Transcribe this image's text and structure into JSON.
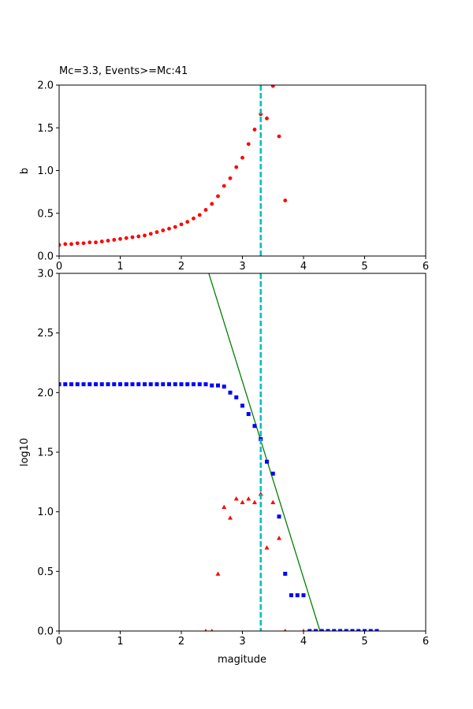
{
  "chart_data": [
    {
      "type": "scatter",
      "title": "Mc=3.3, Events>=Mc:41",
      "xlabel": "",
      "ylabel": "b",
      "xlim": [
        0,
        6
      ],
      "ylim": [
        0,
        2.0
      ],
      "x_ticks": [
        "0",
        "1",
        "2",
        "3",
        "4",
        "5",
        "6"
      ],
      "y_ticks": [
        "0.0",
        "0.5",
        "1.0",
        "1.5",
        "2.0"
      ],
      "grid": false,
      "mc_line": {
        "x": 3.3,
        "color": "#00bfbf",
        "style": "dashed"
      },
      "series": [
        {
          "color": "#ff0000",
          "marker": "circle",
          "x": [
            0.0,
            0.1,
            0.2,
            0.3,
            0.4,
            0.5,
            0.6,
            0.7,
            0.8,
            0.9,
            1.0,
            1.1,
            1.2,
            1.3,
            1.4,
            1.5,
            1.6,
            1.7,
            1.8,
            1.9,
            2.0,
            2.1,
            2.2,
            2.3,
            2.4,
            2.5,
            2.6,
            2.7,
            2.8,
            2.9,
            3.0,
            3.1,
            3.2,
            3.3,
            3.4,
            3.5,
            3.6,
            3.7
          ],
          "values": [
            0.13,
            0.14,
            0.14,
            0.15,
            0.15,
            0.16,
            0.16,
            0.17,
            0.18,
            0.19,
            0.2,
            0.21,
            0.22,
            0.23,
            0.24,
            0.26,
            0.28,
            0.3,
            0.32,
            0.34,
            0.37,
            0.4,
            0.44,
            0.48,
            0.54,
            0.61,
            0.7,
            0.82,
            0.91,
            1.04,
            1.15,
            1.31,
            1.48,
            1.66,
            1.61,
            1.99,
            1.4,
            0.65
          ]
        }
      ]
    },
    {
      "type": "scatter",
      "title": "",
      "xlabel": "magitude",
      "ylabel": "log10",
      "xlim": [
        0,
        6
      ],
      "ylim": [
        0,
        3.0
      ],
      "x_ticks": [
        "0",
        "1",
        "2",
        "3",
        "4",
        "5",
        "6"
      ],
      "y_ticks": [
        "0.0",
        "0.5",
        "1.0",
        "1.5",
        "2.0",
        "2.5",
        "3.0"
      ],
      "grid": false,
      "mc_line": {
        "x": 3.3,
        "color": "#00bfbf",
        "style": "dashed"
      },
      "fit_line": {
        "color": "#008000",
        "x": [
          2.45,
          4.27
        ],
        "values": [
          3.0,
          0.0
        ]
      },
      "series": [
        {
          "color": "#0000ff",
          "marker": "square",
          "x": [
            0.0,
            0.1,
            0.2,
            0.3,
            0.4,
            0.5,
            0.6,
            0.7,
            0.8,
            0.9,
            1.0,
            1.1,
            1.2,
            1.3,
            1.4,
            1.5,
            1.6,
            1.7,
            1.8,
            1.9,
            2.0,
            2.1,
            2.2,
            2.3,
            2.4,
            2.5,
            2.6,
            2.7,
            2.8,
            2.9,
            3.0,
            3.1,
            3.2,
            3.3,
            3.4,
            3.5,
            3.6,
            3.7,
            3.8,
            3.9,
            4.0,
            4.1,
            4.2,
            4.3,
            4.4,
            4.5,
            4.6,
            4.7,
            4.8,
            4.9,
            5.0,
            5.1,
            5.2
          ],
          "values": [
            2.07,
            2.07,
            2.07,
            2.07,
            2.07,
            2.07,
            2.07,
            2.07,
            2.07,
            2.07,
            2.07,
            2.07,
            2.07,
            2.07,
            2.07,
            2.07,
            2.07,
            2.07,
            2.07,
            2.07,
            2.07,
            2.07,
            2.07,
            2.07,
            2.07,
            2.06,
            2.06,
            2.05,
            2.0,
            1.96,
            1.89,
            1.82,
            1.72,
            1.61,
            1.42,
            1.32,
            0.96,
            0.48,
            0.3,
            0.3,
            0.3,
            0.0,
            0.0,
            0.0,
            0.0,
            0.0,
            0.0,
            0.0,
            0.0,
            0.0,
            0.0,
            0.0,
            0.0
          ]
        },
        {
          "color": "#ff0000",
          "marker": "triangle",
          "x": [
            2.4,
            2.5,
            2.6,
            2.7,
            2.8,
            2.9,
            3.0,
            3.1,
            3.2,
            3.3,
            3.4,
            3.5,
            3.6,
            3.7,
            4.0
          ],
          "values": [
            0.0,
            0.0,
            0.48,
            1.04,
            0.95,
            1.11,
            1.08,
            1.11,
            1.08,
            1.15,
            0.7,
            1.08,
            0.78,
            0.0,
            0.0
          ]
        }
      ]
    }
  ]
}
